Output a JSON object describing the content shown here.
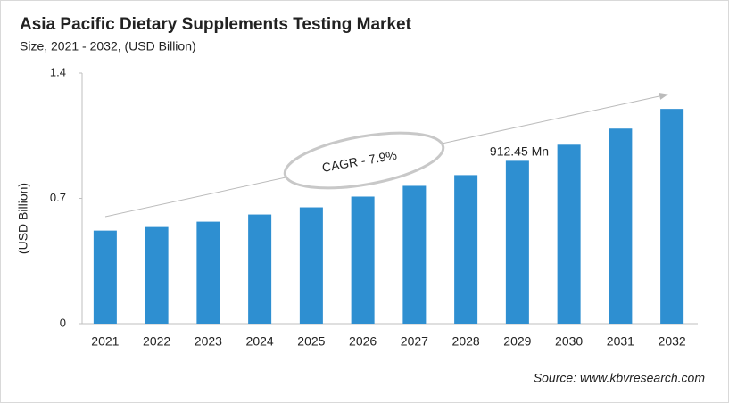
{
  "chart_data": {
    "type": "bar",
    "title": "Asia Pacific Dietary Supplements Testing Market",
    "subtitle": "Size, 2021 - 2032, (USD Billion)",
    "y_label": "(USD Billion)",
    "categories": [
      "2021",
      "2022",
      "2023",
      "2024",
      "2025",
      "2026",
      "2027",
      "2028",
      "2029",
      "2030",
      "2031",
      "2032"
    ],
    "values": [
      0.52,
      0.54,
      0.57,
      0.61,
      0.65,
      0.71,
      0.77,
      0.83,
      0.91,
      1.0,
      1.09,
      1.2
    ],
    "color": "#2e8fd1",
    "ylim": [
      0,
      1.4
    ],
    "yticks": [
      0,
      0.7,
      1.4
    ],
    "grid": false,
    "annotations": [
      "CAGR - 7.9%",
      "912.45 Mn"
    ],
    "source": "Source: www.kbvresearch.com"
  }
}
